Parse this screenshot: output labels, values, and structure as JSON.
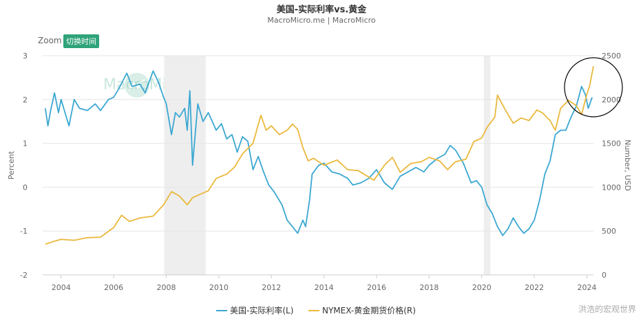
{
  "header": {
    "title": "美国-实际利率vs.黄金",
    "subtitle": "MacroMicro.me | MacroMicro"
  },
  "toolbar": {
    "zoom_label": "Zoom",
    "switch_time_label": "切换时间"
  },
  "watermark": {
    "text": "MacroMicro"
  },
  "source_label": "洪浩的宏观世界",
  "colors": {
    "real_rate": "#3aa7d2",
    "gold": "#eab83c",
    "recession_shade": "#eeeeee",
    "grid": "#e6e6e6",
    "circle": "#000000"
  },
  "chart_data": {
    "type": "line",
    "xlabel": "",
    "x_ticks": [
      "2004",
      "2006",
      "2008",
      "2010",
      "2012",
      "2014",
      "2016",
      "2018",
      "2020",
      "2022",
      "2024"
    ],
    "x_range": [
      2003.3,
      2024.25
    ],
    "y_left": {
      "label": "Percent",
      "range": [
        -2,
        3
      ],
      "ticks": [
        -2,
        -1,
        0,
        1,
        2,
        3
      ]
    },
    "y_right": {
      "label": "Number, USD",
      "range": [
        0,
        2500
      ],
      "ticks": [
        0,
        500,
        1000,
        1500,
        2000,
        2500
      ]
    },
    "shaded_periods": [
      [
        2007.92,
        2009.5
      ],
      [
        2020.08,
        2020.33
      ]
    ],
    "series": [
      {
        "name": "美国-实际利率(L)",
        "axis": "left",
        "points": [
          [
            2003.4,
            1.8
          ],
          [
            2003.5,
            1.4
          ],
          [
            2003.6,
            1.75
          ],
          [
            2003.75,
            2.15
          ],
          [
            2003.9,
            1.7
          ],
          [
            2004.0,
            2.0
          ],
          [
            2004.3,
            1.4
          ],
          [
            2004.5,
            2.0
          ],
          [
            2004.7,
            1.8
          ],
          [
            2005.0,
            1.75
          ],
          [
            2005.3,
            1.9
          ],
          [
            2005.5,
            1.75
          ],
          [
            2005.8,
            2.0
          ],
          [
            2006.0,
            2.05
          ],
          [
            2006.2,
            2.25
          ],
          [
            2006.5,
            2.6
          ],
          [
            2006.7,
            2.3
          ],
          [
            2007.0,
            2.35
          ],
          [
            2007.2,
            2.15
          ],
          [
            2007.5,
            2.65
          ],
          [
            2007.7,
            2.4
          ],
          [
            2007.9,
            2.05
          ],
          [
            2008.0,
            1.9
          ],
          [
            2008.2,
            1.2
          ],
          [
            2008.35,
            1.7
          ],
          [
            2008.5,
            1.6
          ],
          [
            2008.7,
            1.8
          ],
          [
            2008.8,
            1.3
          ],
          [
            2008.9,
            2.2
          ],
          [
            2009.0,
            0.5
          ],
          [
            2009.2,
            1.9
          ],
          [
            2009.4,
            1.5
          ],
          [
            2009.6,
            1.7
          ],
          [
            2009.9,
            1.3
          ],
          [
            2010.1,
            1.45
          ],
          [
            2010.3,
            1.1
          ],
          [
            2010.5,
            1.2
          ],
          [
            2010.7,
            0.8
          ],
          [
            2010.9,
            1.15
          ],
          [
            2011.1,
            1.05
          ],
          [
            2011.3,
            0.4
          ],
          [
            2011.5,
            0.7
          ],
          [
            2011.7,
            0.35
          ],
          [
            2011.9,
            0.05
          ],
          [
            2012.1,
            -0.1
          ],
          [
            2012.4,
            -0.4
          ],
          [
            2012.6,
            -0.75
          ],
          [
            2012.8,
            -0.9
          ],
          [
            2013.0,
            -1.05
          ],
          [
            2013.2,
            -0.75
          ],
          [
            2013.3,
            -0.9
          ],
          [
            2013.45,
            -0.3
          ],
          [
            2013.55,
            0.3
          ],
          [
            2013.8,
            0.5
          ],
          [
            2014.0,
            0.55
          ],
          [
            2014.3,
            0.35
          ],
          [
            2014.6,
            0.3
          ],
          [
            2014.9,
            0.2
          ],
          [
            2015.1,
            0.05
          ],
          [
            2015.4,
            0.1
          ],
          [
            2015.7,
            0.2
          ],
          [
            2016.0,
            0.4
          ],
          [
            2016.3,
            0.1
          ],
          [
            2016.6,
            -0.05
          ],
          [
            2016.9,
            0.25
          ],
          [
            2017.2,
            0.35
          ],
          [
            2017.5,
            0.45
          ],
          [
            2017.8,
            0.35
          ],
          [
            2018.0,
            0.5
          ],
          [
            2018.3,
            0.65
          ],
          [
            2018.6,
            0.75
          ],
          [
            2018.8,
            0.95
          ],
          [
            2019.0,
            0.85
          ],
          [
            2019.3,
            0.55
          ],
          [
            2019.6,
            0.1
          ],
          [
            2019.8,
            0.15
          ],
          [
            2020.0,
            0.0
          ],
          [
            2020.2,
            -0.4
          ],
          [
            2020.4,
            -0.6
          ],
          [
            2020.6,
            -0.9
          ],
          [
            2020.8,
            -1.1
          ],
          [
            2021.0,
            -0.95
          ],
          [
            2021.2,
            -0.7
          ],
          [
            2021.4,
            -0.9
          ],
          [
            2021.6,
            -1.05
          ],
          [
            2021.8,
            -0.95
          ],
          [
            2022.0,
            -0.75
          ],
          [
            2022.2,
            -0.3
          ],
          [
            2022.4,
            0.3
          ],
          [
            2022.6,
            0.6
          ],
          [
            2022.8,
            1.2
          ],
          [
            2023.0,
            1.3
          ],
          [
            2023.2,
            1.3
          ],
          [
            2023.4,
            1.6
          ],
          [
            2023.6,
            1.85
          ],
          [
            2023.8,
            2.3
          ],
          [
            2023.95,
            2.1
          ],
          [
            2024.05,
            1.8
          ],
          [
            2024.2,
            2.05
          ]
        ]
      },
      {
        "name": "NYMEX-黄金期货价格(R)",
        "axis": "right",
        "points": [
          [
            2003.4,
            350
          ],
          [
            2003.7,
            380
          ],
          [
            2004.0,
            405
          ],
          [
            2004.5,
            395
          ],
          [
            2005.0,
            425
          ],
          [
            2005.5,
            430
          ],
          [
            2006.0,
            540
          ],
          [
            2006.3,
            680
          ],
          [
            2006.6,
            610
          ],
          [
            2007.0,
            650
          ],
          [
            2007.5,
            670
          ],
          [
            2007.9,
            800
          ],
          [
            2008.2,
            950
          ],
          [
            2008.5,
            900
          ],
          [
            2008.8,
            800
          ],
          [
            2009.0,
            880
          ],
          [
            2009.3,
            920
          ],
          [
            2009.6,
            960
          ],
          [
            2009.9,
            1100
          ],
          [
            2010.3,
            1150
          ],
          [
            2010.6,
            1230
          ],
          [
            2010.9,
            1380
          ],
          [
            2011.3,
            1500
          ],
          [
            2011.6,
            1820
          ],
          [
            2011.8,
            1650
          ],
          [
            2012.0,
            1700
          ],
          [
            2012.3,
            1600
          ],
          [
            2012.6,
            1650
          ],
          [
            2012.8,
            1720
          ],
          [
            2013.0,
            1660
          ],
          [
            2013.2,
            1450
          ],
          [
            2013.4,
            1300
          ],
          [
            2013.6,
            1330
          ],
          [
            2014.0,
            1250
          ],
          [
            2014.5,
            1310
          ],
          [
            2014.9,
            1200
          ],
          [
            2015.3,
            1190
          ],
          [
            2015.9,
            1080
          ],
          [
            2016.3,
            1250
          ],
          [
            2016.6,
            1340
          ],
          [
            2016.9,
            1170
          ],
          [
            2017.3,
            1270
          ],
          [
            2017.7,
            1290
          ],
          [
            2018.0,
            1340
          ],
          [
            2018.4,
            1300
          ],
          [
            2018.7,
            1200
          ],
          [
            2019.0,
            1290
          ],
          [
            2019.4,
            1320
          ],
          [
            2019.7,
            1520
          ],
          [
            2020.0,
            1560
          ],
          [
            2020.2,
            1680
          ],
          [
            2020.5,
            1800
          ],
          [
            2020.6,
            2050
          ],
          [
            2020.9,
            1880
          ],
          [
            2021.2,
            1730
          ],
          [
            2021.5,
            1790
          ],
          [
            2021.8,
            1760
          ],
          [
            2022.1,
            1880
          ],
          [
            2022.3,
            1850
          ],
          [
            2022.6,
            1760
          ],
          [
            2022.8,
            1650
          ],
          [
            2023.0,
            1900
          ],
          [
            2023.3,
            1990
          ],
          [
            2023.6,
            1930
          ],
          [
            2023.8,
            1830
          ],
          [
            2024.0,
            2060
          ],
          [
            2024.1,
            2150
          ],
          [
            2024.25,
            2380
          ]
        ]
      }
    ],
    "legend": {
      "placement": "bottom-center"
    },
    "annotation": {
      "shape": "circle",
      "region": "2023.4-2024.5, top-right"
    }
  }
}
